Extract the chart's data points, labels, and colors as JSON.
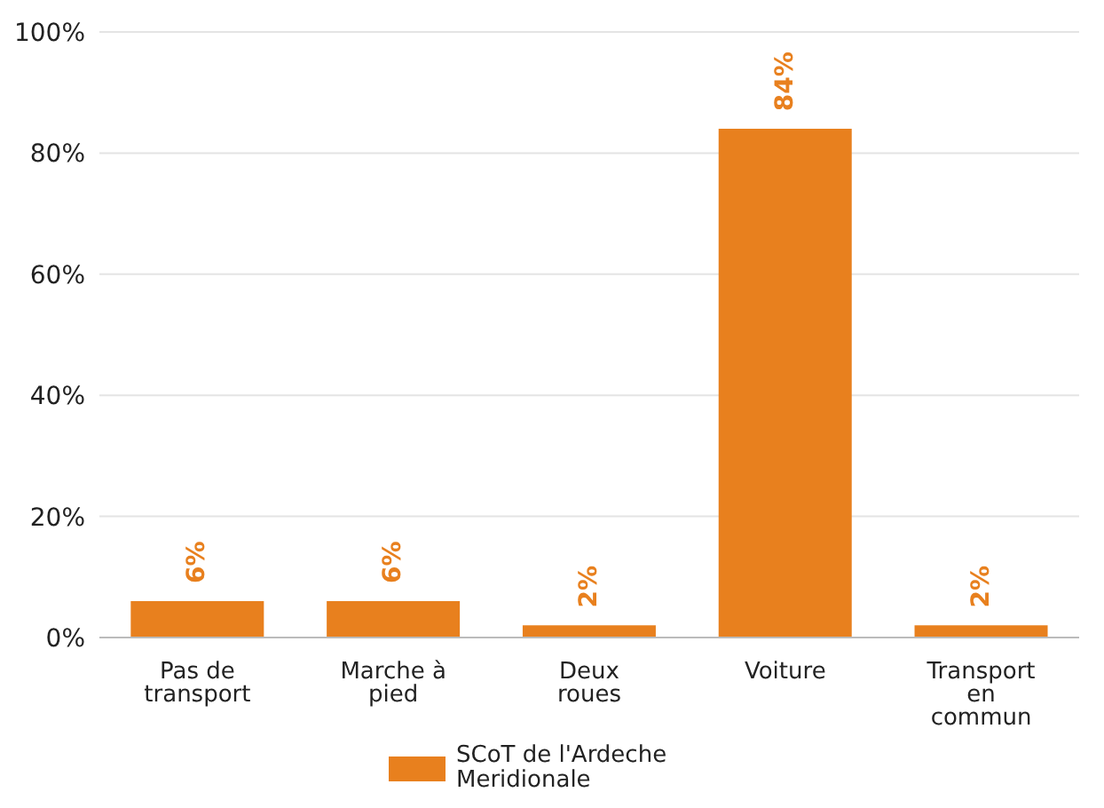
{
  "chart_data": {
    "type": "bar",
    "categories": [
      "Pas de transport",
      "Marche à pied",
      "Deux roues",
      "Voiture",
      "Transport en commun"
    ],
    "series": [
      {
        "name": "SCoT de l'Ardeche Meridionale",
        "color": "#e8801e",
        "values": [
          6,
          6,
          2,
          84,
          2
        ]
      }
    ],
    "value_labels": [
      "6%",
      "6%",
      "2%",
      "84%",
      "2%"
    ],
    "ylim": [
      0,
      100
    ],
    "yticks": [
      {
        "value": 0,
        "label": "0%"
      },
      {
        "value": 20,
        "label": "20%"
      },
      {
        "value": 40,
        "label": "40%"
      },
      {
        "value": 60,
        "label": "60%"
      },
      {
        "value": 80,
        "label": "80%"
      },
      {
        "value": 100,
        "label": "100%"
      }
    ],
    "grid": "y",
    "legend": "bottom"
  }
}
